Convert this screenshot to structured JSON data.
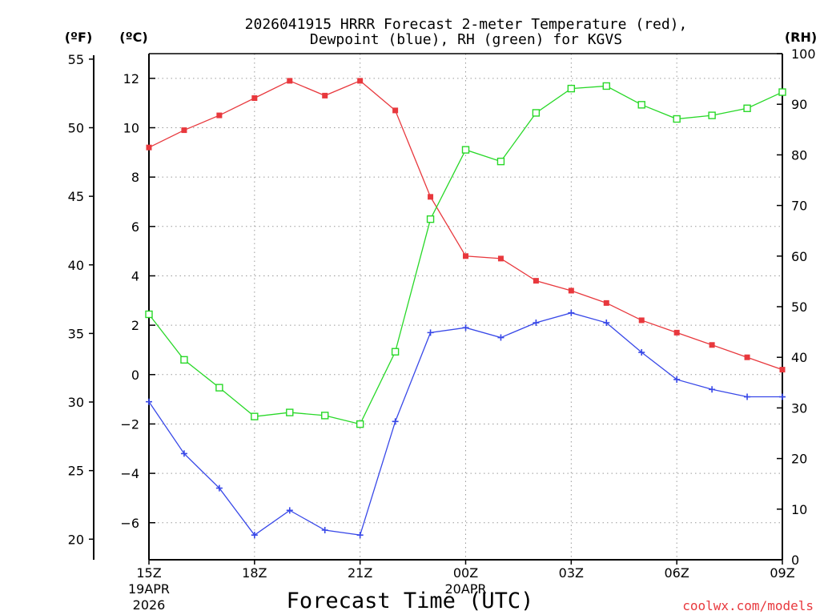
{
  "chart_data": {
    "type": "line",
    "title_line1": "2026041915 HRRR Forecast 2-meter Temperature (red),",
    "title_line2": "Dewpoint (blue), RH (green) for KGVS",
    "left_outer_unit": "(ºF)",
    "left_inner_unit": "(ºC)",
    "right_unit": "(RH)",
    "xlabel": "Forecast Time (UTC)",
    "watermark": "coolwx.com/models",
    "x_ticks": [
      {
        "label": "15Z",
        "sub1": "19APR",
        "sub2": "2026",
        "h": 0
      },
      {
        "label": "18Z",
        "sub1": "",
        "sub2": "",
        "h": 3
      },
      {
        "label": "21Z",
        "sub1": "",
        "sub2": "",
        "h": 6
      },
      {
        "label": "00Z",
        "sub1": "20APR",
        "sub2": "",
        "h": 9
      },
      {
        "label": "03Z",
        "sub1": "",
        "sub2": "",
        "h": 12
      },
      {
        "label": "06Z",
        "sub1": "",
        "sub2": "",
        "h": 15
      },
      {
        "label": "09Z",
        "sub1": "",
        "sub2": "",
        "h": 18
      }
    ],
    "x_range": [
      0,
      18
    ],
    "celsius_range": [
      -7.5,
      13
    ],
    "celsius_ticks": [
      "12",
      "10",
      "8",
      "6",
      "4",
      "2",
      "0",
      "−2",
      "−4",
      "−6"
    ],
    "fahrenheit_ticks": [
      "55",
      "50",
      "45",
      "40",
      "35",
      "30",
      "25",
      "20"
    ],
    "rh_range": [
      0,
      100
    ],
    "rh_ticks": [
      "100",
      "90",
      "80",
      "70",
      "60",
      "50",
      "40",
      "30",
      "20",
      "10",
      "0"
    ],
    "hours": [
      0,
      1,
      2,
      3,
      4,
      5,
      6,
      7,
      8,
      9,
      10,
      11,
      12,
      13,
      14,
      15,
      16,
      17,
      18
    ],
    "series": [
      {
        "name": "Temperature",
        "unit": "C",
        "color": "#e8383d",
        "marker": "filled-square",
        "values": [
          9.2,
          9.9,
          10.5,
          11.2,
          11.9,
          11.3,
          11.9,
          10.7,
          7.2,
          4.8,
          4.7,
          3.8,
          3.4,
          2.9,
          2.2,
          1.7,
          1.2,
          0.7,
          0.2
        ]
      },
      {
        "name": "Dewpoint",
        "unit": "C",
        "color": "#3848e8",
        "marker": "plus",
        "values": [
          -1.1,
          -3.2,
          -4.6,
          -6.5,
          -5.5,
          -6.3,
          -6.5,
          -1.9,
          1.7,
          1.9,
          1.5,
          2.1,
          2.5,
          2.1,
          0.9,
          -0.2,
          -0.6,
          -0.9,
          -0.9
        ]
      },
      {
        "name": "RH",
        "unit": "%",
        "color": "#28d828",
        "marker": "open-square",
        "values": [
          48.5,
          39.5,
          34,
          28.3,
          29.1,
          28.5,
          26.8,
          41.1,
          67.3,
          81,
          78.7,
          88.3,
          93.1,
          93.6,
          89.9,
          87.1,
          87.8,
          89.2,
          92.4
        ]
      }
    ]
  }
}
